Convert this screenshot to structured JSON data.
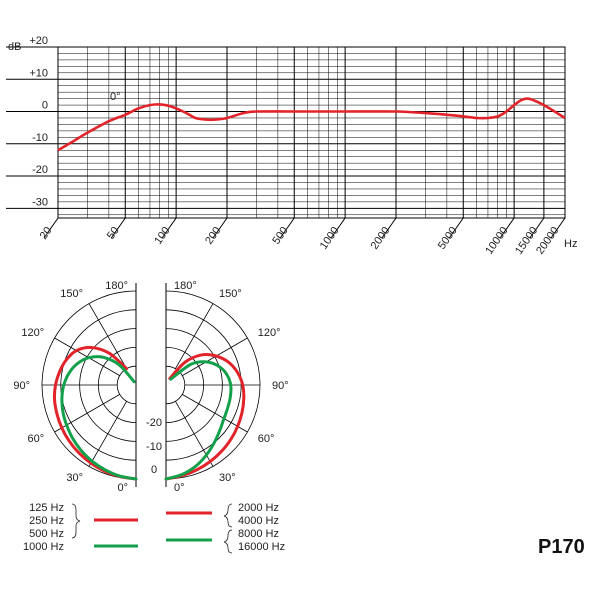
{
  "colors": {
    "red": "#e2232a",
    "green": "#12a04a",
    "grid": "#000000"
  },
  "model_label": "P170",
  "chart_data": [
    {
      "type": "line",
      "xscale": "log",
      "xlabel_unit": "Hz",
      "ylabel_unit": "dB",
      "ylim": [
        -35,
        20
      ],
      "xlim": [
        20,
        20000
      ],
      "grid": true,
      "x_ticks": [
        "20",
        "50",
        "100",
        "200",
        "500",
        "1000",
        "2000",
        "5000",
        "10000",
        "15000",
        "20000"
      ],
      "y_ticks": [
        "+20",
        "+10",
        "0",
        "-10",
        "-20",
        "-30"
      ],
      "annotation": "0°",
      "series": [
        {
          "color": "red",
          "x": [
            20,
            25,
            30,
            40,
            50,
            60,
            70,
            80,
            90,
            100,
            110,
            120,
            130,
            150,
            170,
            200,
            250,
            300,
            500,
            1000,
            2000,
            3000,
            4000,
            5000,
            6000,
            7000,
            8000,
            9000,
            10000,
            11000,
            12000,
            13000,
            15000,
            20000
          ],
          "values": [
            -12,
            -9,
            -6.5,
            -3,
            -1,
            1,
            2,
            2.2,
            1.8,
            1,
            0,
            -1,
            -2,
            -2.5,
            -2.5,
            -2,
            -0.5,
            0,
            0,
            0,
            0,
            -0.5,
            -1,
            -1.5,
            -2,
            -2,
            -1.5,
            0,
            2,
            3.5,
            4,
            3.5,
            2,
            -2
          ]
        }
      ]
    },
    {
      "type": "polar",
      "angle_labels": [
        "0°",
        "30°",
        "60°",
        "90°",
        "120°",
        "150°",
        "180°"
      ],
      "ring_labels": [
        "-20",
        "-10",
        "0"
      ],
      "rlim": [
        -25,
        0
      ],
      "series": [
        {
          "side": "left",
          "color": "red",
          "frequencies": [
            "125 Hz",
            "250 Hz",
            "500 Hz"
          ],
          "angles": [
            0,
            10,
            20,
            30,
            40,
            50,
            60,
            70,
            80,
            90,
            100,
            110,
            120,
            130,
            140,
            150
          ],
          "levels": [
            0,
            -0.3,
            -0.6,
            -1,
            -1.4,
            -1.8,
            -2.2,
            -2.6,
            -3,
            -3.6,
            -4.4,
            -5.3,
            -6.7,
            -9.5,
            -14,
            -20
          ]
        },
        {
          "side": "left",
          "color": "green",
          "frequencies": [
            "1000 Hz"
          ],
          "angles": [
            0,
            10,
            20,
            30,
            40,
            50,
            60,
            70,
            80,
            90,
            100,
            110,
            120,
            130,
            140,
            150
          ],
          "levels": [
            0,
            -0.4,
            -1,
            -1.6,
            -2.3,
            -3,
            -3.7,
            -4.3,
            -5,
            -5.8,
            -6.9,
            -8.4,
            -10.5,
            -13.5,
            -18,
            -24
          ]
        },
        {
          "side": "right",
          "color": "red",
          "frequencies": [
            "2000 Hz",
            "4000 Hz"
          ],
          "angles": [
            0,
            10,
            20,
            30,
            40,
            50,
            60,
            70,
            80,
            90,
            100,
            110,
            120,
            130,
            140,
            150
          ],
          "levels": [
            0,
            -0.5,
            -1,
            -1.5,
            -2,
            -2.5,
            -3,
            -3.5,
            -4,
            -4.6,
            -5.7,
            -7.3,
            -9.6,
            -12.5,
            -17,
            -23
          ]
        },
        {
          "side": "right",
          "color": "green",
          "frequencies": [
            "8000 Hz",
            "16000 Hz"
          ],
          "angles": [
            0,
            10,
            20,
            30,
            40,
            50,
            60,
            70,
            80,
            90,
            100,
            110,
            120,
            130,
            140
          ],
          "levels": [
            0,
            -0.8,
            -2,
            -3.5,
            -5,
            -6.3,
            -7.2,
            -7.5,
            -7.6,
            -7.8,
            -8.6,
            -10.2,
            -12.7,
            -16.5,
            -23
          ]
        }
      ]
    }
  ],
  "legend": {
    "left": {
      "red_labels": [
        "125 Hz",
        "250 Hz",
        "500 Hz"
      ],
      "green_labels": [
        "1000 Hz"
      ]
    },
    "right": {
      "red_labels": [
        "2000 Hz",
        "4000 Hz"
      ],
      "green_labels": [
        "8000 Hz",
        "16000 Hz"
      ]
    }
  }
}
